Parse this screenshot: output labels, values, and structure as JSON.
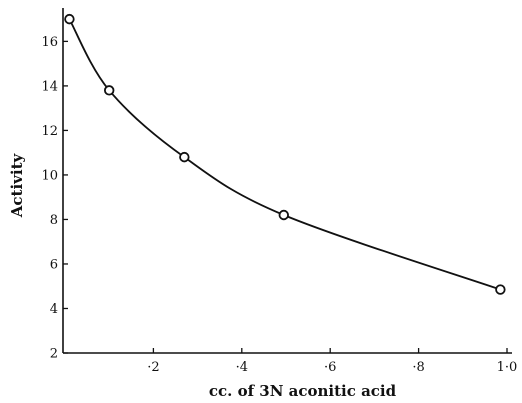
{
  "chart_data": {
    "type": "line",
    "title": "",
    "xlabel": "cc. of 3N aconitic acid",
    "ylabel": "Activity",
    "xlim": [
      0,
      1.0
    ],
    "ylim": [
      2,
      17.5
    ],
    "grid": false,
    "x_ticks": [
      0.2,
      0.4,
      0.6,
      0.8,
      1.0
    ],
    "x_tick_labels": [
      "·2",
      "·4",
      "·6",
      "·8",
      "1·0"
    ],
    "y_ticks": [
      2,
      4,
      6,
      8,
      10,
      12,
      14,
      16
    ],
    "y_tick_labels": [
      "2",
      "4",
      "6",
      "8",
      "10",
      "12",
      "14",
      "16"
    ],
    "series": [
      {
        "x": [
          0.01,
          0.1,
          0.27,
          0.495,
          0.985
        ],
        "y": [
          17.0,
          13.8,
          10.8,
          8.2,
          4.85
        ]
      }
    ]
  }
}
